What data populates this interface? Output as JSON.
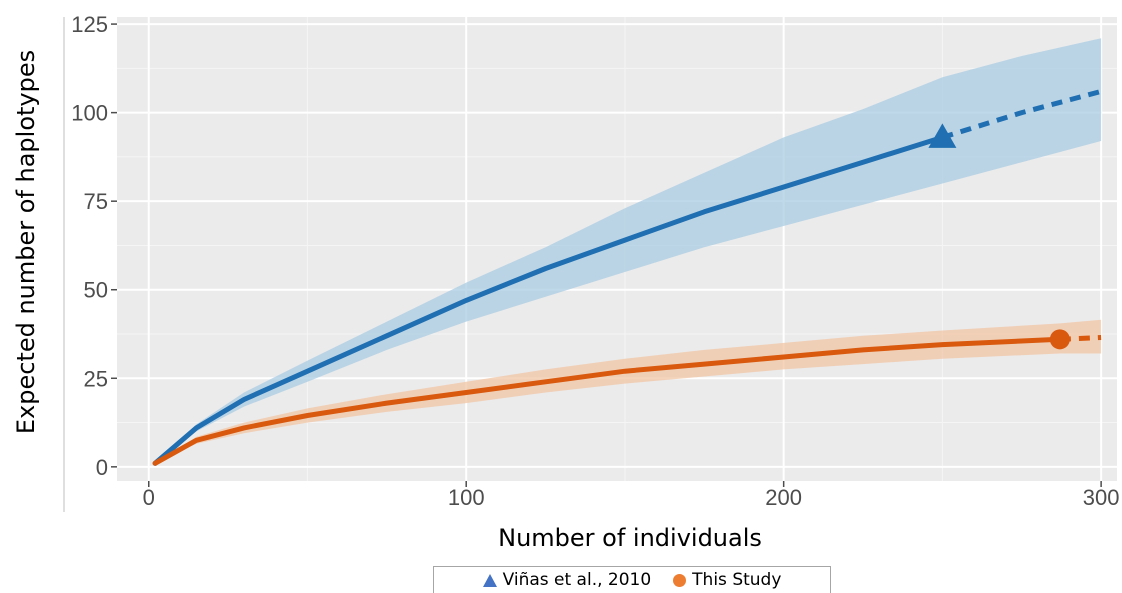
{
  "chart_data": {
    "type": "line",
    "xlabel": "Number of individuals",
    "ylabel": "Expected number of haplotypes",
    "xlim": [
      -10,
      305
    ],
    "ylim": [
      -4,
      127
    ],
    "x_ticks": [
      0,
      100,
      200,
      300
    ],
    "y_ticks": [
      0,
      25,
      50,
      75,
      100,
      125
    ],
    "grid": true,
    "legend_position": "bottom",
    "series": [
      {
        "name": "Viñas et al., 2010",
        "color": "#1f6fb2",
        "band_color": "#a9cce3",
        "legend_color": "#4472c4",
        "marker": "triangle",
        "observed_x": 250,
        "observed_y": 93,
        "interpolated": {
          "x": [
            2,
            15,
            30,
            50,
            75,
            100,
            125,
            150,
            175,
            200,
            225,
            250
          ],
          "y": [
            1,
            11,
            19,
            27,
            37,
            47,
            56,
            64,
            72,
            79,
            86,
            93
          ]
        },
        "extrapolated": {
          "x": [
            250,
            275,
            300
          ],
          "y": [
            93,
            100,
            106
          ]
        },
        "band": {
          "x": [
            2,
            15,
            30,
            50,
            75,
            100,
            125,
            150,
            175,
            200,
            225,
            250,
            275,
            300
          ],
          "lower": [
            1,
            10,
            17,
            24,
            33,
            41,
            48,
            55,
            62,
            68,
            74,
            80,
            86,
            92
          ],
          "upper": [
            1,
            12,
            21,
            30,
            41,
            52,
            62,
            73,
            83,
            93,
            101,
            110,
            116,
            121
          ]
        }
      },
      {
        "name": "This Study",
        "color": "#d9590e",
        "band_color": "#f2c6a6",
        "legend_color": "#ed7d31",
        "marker": "circle",
        "observed_x": 287,
        "observed_y": 36,
        "interpolated": {
          "x": [
            2,
            15,
            30,
            50,
            75,
            100,
            125,
            150,
            175,
            200,
            225,
            250,
            287
          ],
          "y": [
            1,
            7.5,
            11,
            14.5,
            18,
            21,
            24,
            27,
            29,
            31,
            33,
            34.5,
            36
          ]
        },
        "extrapolated": {
          "x": [
            287,
            300
          ],
          "y": [
            36,
            36.5
          ]
        },
        "band": {
          "x": [
            2,
            15,
            30,
            50,
            75,
            100,
            125,
            150,
            175,
            200,
            225,
            250,
            287,
            300
          ],
          "lower": [
            1,
            6.5,
            9.5,
            12.5,
            15.5,
            18,
            21,
            23.5,
            25.5,
            27.5,
            29,
            30.5,
            32,
            32
          ],
          "upper": [
            1,
            8.5,
            12.5,
            16.5,
            20.5,
            24,
            27.5,
            30.5,
            33,
            35,
            37,
            38.5,
            40.5,
            41.5
          ]
        }
      }
    ]
  }
}
